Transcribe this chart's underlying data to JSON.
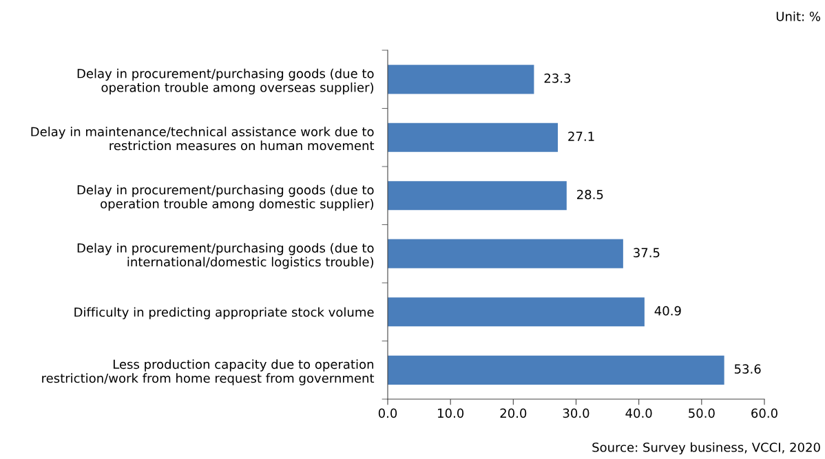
{
  "chart_data": {
    "type": "bar",
    "orientation": "horizontal",
    "categories": [
      "Delay in procurement/purchasing goods (due to\noperation trouble among overseas supplier)",
      "Delay in maintenance/technical assistance work due to\nrestriction measures on human movement",
      "Delay in procurement/purchasing goods (due to\noperation trouble among domestic supplier)",
      "Delay in procurement/purchasing goods (due to\ninternational/domestic logistics trouble)",
      "Difficulty in predicting appropriate stock volume",
      "Less production capacity due to operation\nrestriction/work from home request from government"
    ],
    "values": [
      23.3,
      27.1,
      28.5,
      37.5,
      40.9,
      53.6
    ],
    "color": "#4a7ebb",
    "xlim": [
      0,
      60
    ],
    "xticks": [
      {
        "value": 0,
        "label": "0.0"
      },
      {
        "value": 10,
        "label": "10.0"
      },
      {
        "value": 20,
        "label": "20.0"
      },
      {
        "value": 30,
        "label": "30.0"
      },
      {
        "value": 40,
        "label": "40.0"
      },
      {
        "value": 50,
        "label": "50.0"
      },
      {
        "value": 60,
        "label": "60.0"
      }
    ],
    "data_labels": true,
    "grid": false,
    "legend": false,
    "annotations": [
      "Unit: %",
      "Source: Survey business, VCCI, 2020"
    ]
  }
}
